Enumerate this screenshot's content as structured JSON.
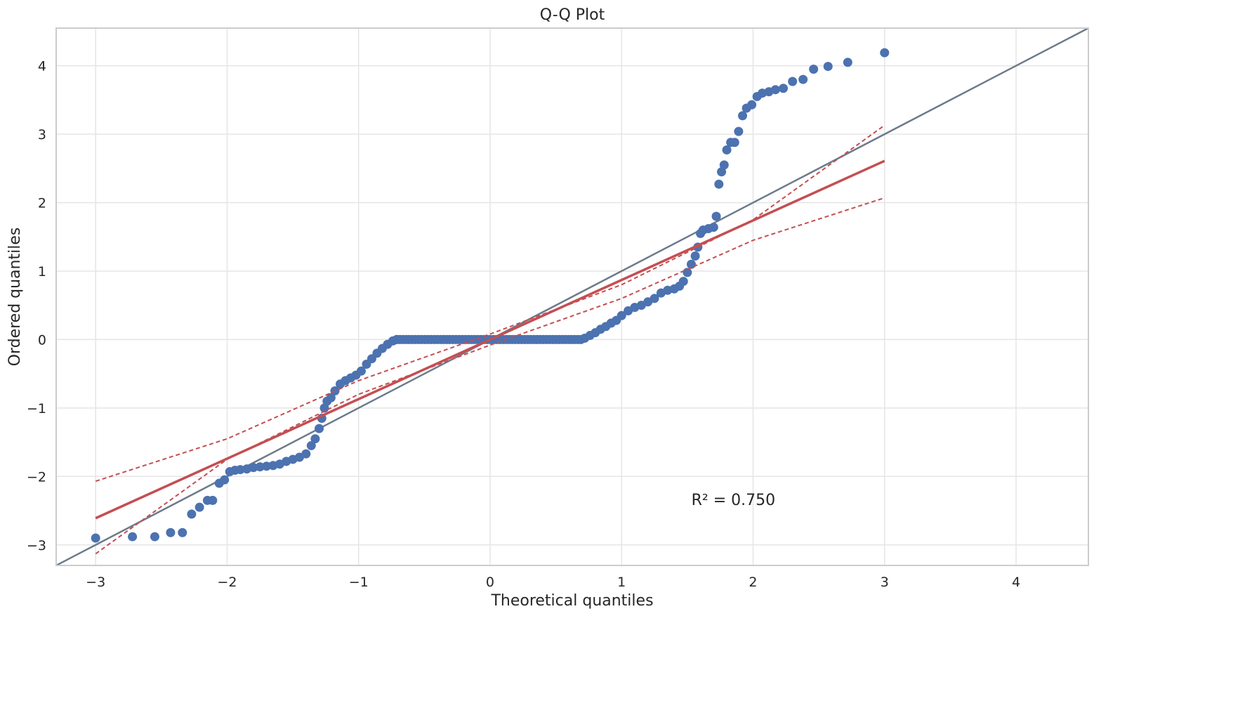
{
  "chart_data": {
    "type": "scatter",
    "title": "Q-Q Plot",
    "xlabel": "Theoretical quantiles",
    "ylabel": "Ordered quantiles",
    "xlim": [
      -3.3,
      4.55
    ],
    "ylim": [
      -3.3,
      4.55
    ],
    "xticks": [
      -3,
      -2,
      -1,
      0,
      1,
      2,
      3,
      4
    ],
    "yticks": [
      -3,
      -2,
      -1,
      0,
      1,
      2,
      3,
      4
    ],
    "xtick_labels": [
      "−3",
      "−2",
      "−1",
      "0",
      "1",
      "2",
      "3",
      "4"
    ],
    "ytick_labels": [
      "−3",
      "−2",
      "−1",
      "0",
      "1",
      "2",
      "3",
      "4"
    ],
    "grid": true,
    "annotation": "R² = 0.750",
    "annotation_pos": [
      1.85,
      -2.42
    ],
    "colors": {
      "points": "#4c72b0",
      "fit": "#c44e52",
      "band": "#c44e52",
      "reference": "#6c7b8b",
      "grid": "#e5e5e5",
      "spine": "#cccccc"
    },
    "series": [
      {
        "type": "scatter",
        "points": [
          [
            -3.0,
            -2.9
          ],
          [
            -2.72,
            -2.88
          ],
          [
            -2.55,
            -2.88
          ],
          [
            -2.43,
            -2.82
          ],
          [
            -2.34,
            -2.82
          ],
          [
            -2.27,
            -2.55
          ],
          [
            -2.21,
            -2.45
          ],
          [
            -2.15,
            -2.35
          ],
          [
            -2.11,
            -2.35
          ],
          [
            -2.06,
            -2.1
          ],
          [
            -2.02,
            -2.05
          ],
          [
            -1.98,
            -1.93
          ],
          [
            -1.94,
            -1.91
          ],
          [
            -1.9,
            -1.9
          ],
          [
            -1.85,
            -1.89
          ],
          [
            -1.8,
            -1.87
          ],
          [
            -1.75,
            -1.86
          ],
          [
            -1.7,
            -1.85
          ],
          [
            -1.65,
            -1.84
          ],
          [
            -1.6,
            -1.82
          ],
          [
            -1.55,
            -1.78
          ],
          [
            -1.5,
            -1.75
          ],
          [
            -1.45,
            -1.72
          ],
          [
            -1.4,
            -1.67
          ],
          [
            -1.36,
            -1.55
          ],
          [
            -1.33,
            -1.45
          ],
          [
            -1.3,
            -1.3
          ],
          [
            -1.28,
            -1.15
          ],
          [
            -1.26,
            -1.0
          ],
          [
            -1.24,
            -0.9
          ],
          [
            -1.21,
            -0.85
          ],
          [
            -1.18,
            -0.75
          ],
          [
            -1.14,
            -0.65
          ],
          [
            -1.1,
            -0.6
          ],
          [
            -1.06,
            -0.56
          ],
          [
            -1.02,
            -0.52
          ],
          [
            -0.98,
            -0.46
          ],
          [
            -0.94,
            -0.36
          ],
          [
            -0.9,
            -0.28
          ],
          [
            -0.86,
            -0.2
          ],
          [
            -0.82,
            -0.13
          ],
          [
            -0.78,
            -0.07
          ],
          [
            -0.74,
            -0.02
          ],
          [
            -0.71,
            0.0
          ]
        ]
      },
      {
        "type": "scatter_range",
        "x_from": -0.71,
        "x_to": 0.69,
        "y": 0.0,
        "count": 60
      },
      {
        "type": "scatter",
        "points": [
          [
            0.72,
            0.02
          ],
          [
            0.76,
            0.06
          ],
          [
            0.8,
            0.1
          ],
          [
            0.84,
            0.15
          ],
          [
            0.88,
            0.19
          ],
          [
            0.92,
            0.24
          ],
          [
            0.96,
            0.28
          ],
          [
            1.0,
            0.35
          ],
          [
            1.05,
            0.42
          ],
          [
            1.1,
            0.47
          ],
          [
            1.15,
            0.5
          ],
          [
            1.2,
            0.55
          ],
          [
            1.25,
            0.6
          ],
          [
            1.3,
            0.68
          ],
          [
            1.35,
            0.72
          ],
          [
            1.4,
            0.74
          ],
          [
            1.44,
            0.78
          ],
          [
            1.47,
            0.85
          ],
          [
            1.5,
            0.98
          ],
          [
            1.53,
            1.1
          ],
          [
            1.56,
            1.22
          ],
          [
            1.58,
            1.35
          ],
          [
            1.6,
            1.55
          ],
          [
            1.62,
            1.6
          ],
          [
            1.66,
            1.62
          ],
          [
            1.7,
            1.64
          ],
          [
            1.72,
            1.8
          ],
          [
            1.74,
            2.27
          ],
          [
            1.76,
            2.45
          ],
          [
            1.78,
            2.55
          ],
          [
            1.8,
            2.77
          ],
          [
            1.83,
            2.88
          ],
          [
            1.86,
            2.88
          ],
          [
            1.89,
            3.04
          ],
          [
            1.92,
            3.27
          ],
          [
            1.95,
            3.38
          ],
          [
            1.99,
            3.43
          ],
          [
            2.03,
            3.55
          ],
          [
            2.07,
            3.6
          ],
          [
            2.12,
            3.62
          ],
          [
            2.17,
            3.65
          ],
          [
            2.23,
            3.67
          ],
          [
            2.3,
            3.77
          ],
          [
            2.38,
            3.8
          ],
          [
            2.46,
            3.95
          ],
          [
            2.57,
            3.99
          ],
          [
            2.72,
            4.05
          ],
          [
            3.0,
            4.19
          ]
        ]
      }
    ],
    "fit_line": {
      "slope": 0.87,
      "intercept": 0.0,
      "x_range": [
        -3.0,
        3.0
      ]
    },
    "confidence_band": {
      "upper": [
        [
          -3.0,
          -2.07
        ],
        [
          -2.0,
          -1.45
        ],
        [
          -1.0,
          -0.6
        ],
        [
          0.0,
          0.08
        ],
        [
          1.0,
          0.8
        ],
        [
          2.0,
          1.75
        ],
        [
          3.0,
          3.13
        ]
      ],
      "lower": [
        [
          -3.0,
          -3.13
        ],
        [
          -2.0,
          -1.75
        ],
        [
          -1.0,
          -0.8
        ],
        [
          0.0,
          -0.08
        ],
        [
          1.0,
          0.6
        ],
        [
          2.0,
          1.45
        ],
        [
          3.0,
          2.07
        ]
      ]
    },
    "reference_line": {
      "slope": 1.0,
      "intercept": 0.0
    }
  }
}
